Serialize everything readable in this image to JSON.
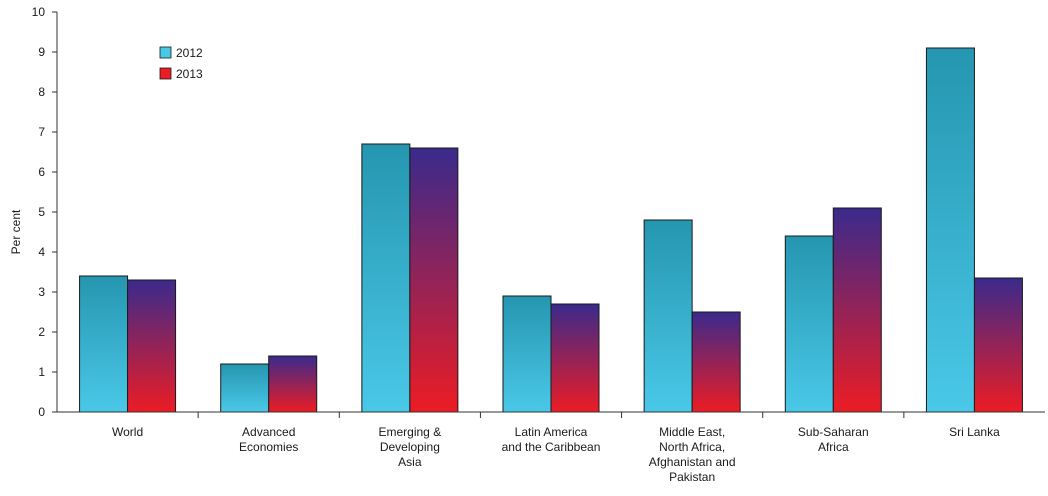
{
  "chart_data": {
    "type": "bar",
    "ylabel": "Per cent",
    "ylim": [
      0,
      10
    ],
    "yticks": [
      "0",
      "1",
      "2",
      "3",
      "4",
      "5",
      "6",
      "7",
      "8",
      "9",
      "10"
    ],
    "categories": [
      [
        "World"
      ],
      [
        "Advanced",
        "Economies"
      ],
      [
        "Emerging &",
        "Developing",
        "Asia"
      ],
      [
        "Latin America",
        "and the Caribbean"
      ],
      [
        "Middle East,",
        "North Africa,",
        "Afghanistan and",
        "Pakistan"
      ],
      [
        "Sub-Saharan",
        "Africa"
      ],
      [
        "Sri Lanka"
      ]
    ],
    "series": [
      {
        "name": "2012",
        "values": [
          3.4,
          1.2,
          6.7,
          2.9,
          4.8,
          4.4,
          9.1
        ]
      },
      {
        "name": "2013",
        "values": [
          3.3,
          1.4,
          6.6,
          2.7,
          2.5,
          5.1,
          3.35
        ]
      }
    ],
    "legend_position": "top-left",
    "grid": false,
    "colors": {
      "2012_top": "#2596b0",
      "2012_bottom": "#4ac8e8",
      "2013_top": "#3a2a8c",
      "2013_bottom": "#ec1c24",
      "axis": "#333333"
    }
  }
}
